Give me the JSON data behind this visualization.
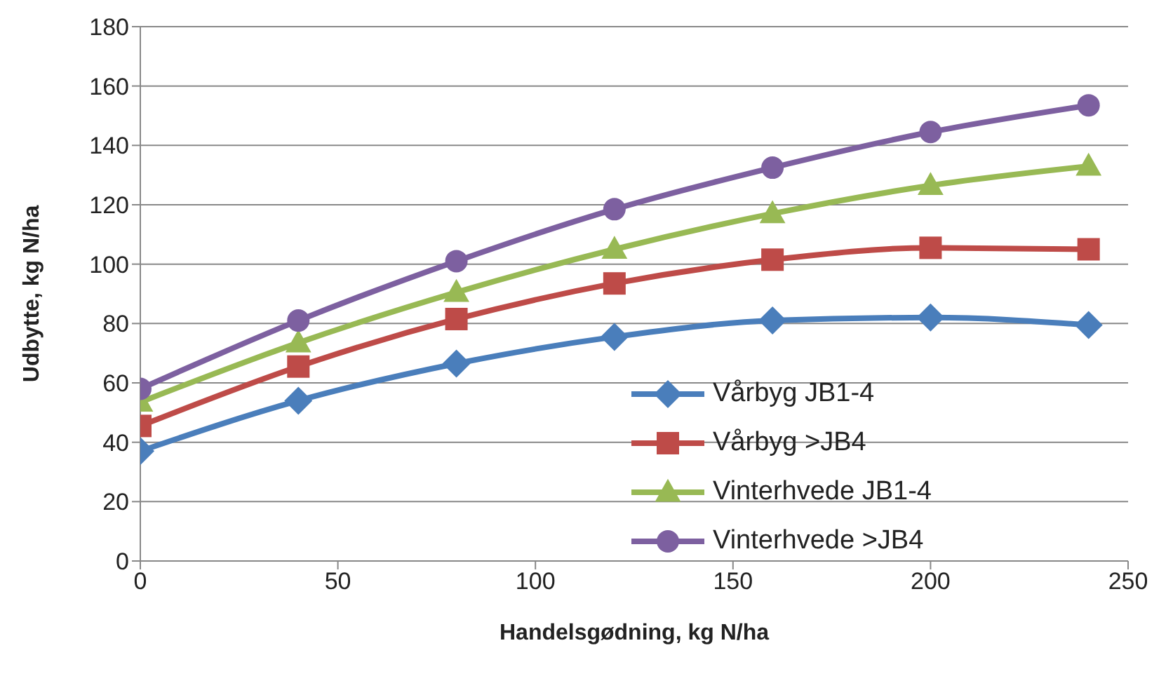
{
  "chart_data": {
    "type": "line",
    "xlabel": "Handelsgødning,  kg N/ha",
    "ylabel": "Udbytte, kg N/ha",
    "x": [
      0,
      40,
      80,
      120,
      160,
      200,
      240
    ],
    "xlim": [
      0,
      250
    ],
    "xticks": [
      0,
      50,
      100,
      150,
      200,
      250
    ],
    "ylim": [
      0,
      180
    ],
    "yticks": [
      0,
      20,
      40,
      60,
      80,
      100,
      120,
      140,
      160,
      180
    ],
    "grid": "y",
    "legend": "bottom right",
    "series": [
      {
        "name": "Vårbyg JB1-4",
        "color": "#4a7ebb",
        "marker": "diamond",
        "values": [
          37,
          54,
          66.5,
          75.5,
          81,
          82,
          79.5
        ]
      },
      {
        "name": "Vårbyg >JB4",
        "color": "#be4b48",
        "marker": "square",
        "values": [
          45.5,
          65.5,
          81.5,
          93.5,
          101.5,
          105.5,
          105
        ]
      },
      {
        "name": "Vinterhvede JB1-4",
        "color": "#98b954",
        "marker": "triangle",
        "values": [
          53.5,
          73.5,
          90.5,
          105,
          117,
          126.5,
          133
        ]
      },
      {
        "name": "Vinterhvede >JB4",
        "color": "#7d60a0",
        "marker": "circle",
        "values": [
          58,
          81,
          101,
          118.5,
          132.5,
          144.5,
          153.5
        ]
      }
    ]
  }
}
